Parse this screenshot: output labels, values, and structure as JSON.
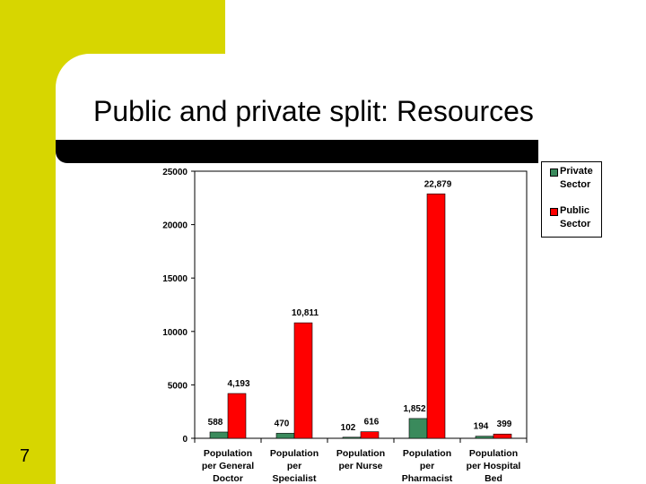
{
  "slide": {
    "title": "Public and private split: Resources",
    "number": "7"
  },
  "chart_data": {
    "type": "bar",
    "categories": [
      [
        "Population",
        "per General",
        "Doctor"
      ],
      [
        "Population",
        "per",
        "Specialist"
      ],
      [
        "Population",
        "per Nurse"
      ],
      [
        "Population",
        "per",
        "Pharmacist"
      ],
      [
        "Population",
        "per Hospital",
        "Bed"
      ]
    ],
    "series": [
      {
        "name": "Private Sector",
        "color": "#3a8a5c",
        "values": [
          588,
          470,
          102,
          1852,
          194
        ],
        "labels": [
          "588",
          "470",
          "102",
          "1,852",
          "194"
        ]
      },
      {
        "name": "Public Sector",
        "color": "#ff0000",
        "values": [
          4193,
          10811,
          616,
          22879,
          399
        ],
        "labels": [
          "4,193",
          "10,811",
          "616",
          "22,879",
          "399"
        ]
      }
    ],
    "ylim": [
      0,
      25000
    ],
    "yticks": [
      "0",
      "5000",
      "10000",
      "15000",
      "20000",
      "25000"
    ],
    "legend": "right",
    "grid": false
  },
  "legend": {
    "private_line1": "Private",
    "private_line2": "Sector",
    "public_line1": "Public",
    "public_line2": "Sector"
  }
}
